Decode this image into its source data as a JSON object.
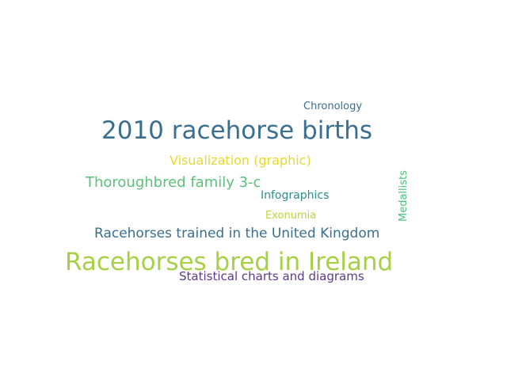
{
  "word_cloud": {
    "words": [
      {
        "text": "2010 racehorse births",
        "color": "#3b6f8f"
      },
      {
        "text": "Racehorses bred in Ireland",
        "color": "#a7d046"
      },
      {
        "text": "Racehorses trained in the United Kingdom",
        "color": "#3b6f8f"
      },
      {
        "text": "Thoroughbred family 3-c",
        "color": "#5bc17a"
      },
      {
        "text": "Visualization (graphic)",
        "color": "#e6d92e"
      },
      {
        "text": "Statistical charts and diagrams",
        "color": "#5d3a8a"
      },
      {
        "text": "Chronology",
        "color": "#3b6f8f"
      },
      {
        "text": "Infographics",
        "color": "#2f8c8c"
      },
      {
        "text": "Exonumia",
        "color": "#b5d83a"
      },
      {
        "text": "Medallists",
        "color": "#4cc17c"
      }
    ]
  }
}
